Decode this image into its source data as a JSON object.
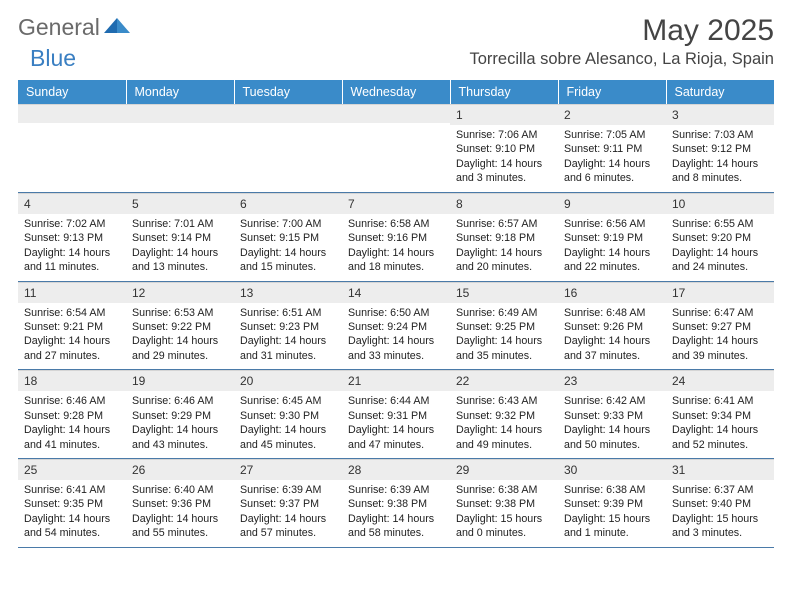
{
  "brand": {
    "general": "General",
    "blue": "Blue"
  },
  "title": "May 2025",
  "location": "Torrecilla sobre Alesanco, La Rioja, Spain",
  "colors": {
    "header_bg": "#3a8bc9",
    "header_text": "#ffffff",
    "daynum_bg": "#ededed",
    "border": "#4a7aa8",
    "brand_gray": "#6a6a6a",
    "brand_blue": "#3a7fc2"
  },
  "weekdays": [
    "Sunday",
    "Monday",
    "Tuesday",
    "Wednesday",
    "Thursday",
    "Friday",
    "Saturday"
  ],
  "weeks": [
    [
      null,
      null,
      null,
      null,
      {
        "d": "1",
        "sr": "7:06 AM",
        "ss": "9:10 PM",
        "dl": "14 hours and 3 minutes."
      },
      {
        "d": "2",
        "sr": "7:05 AM",
        "ss": "9:11 PM",
        "dl": "14 hours and 6 minutes."
      },
      {
        "d": "3",
        "sr": "7:03 AM",
        "ss": "9:12 PM",
        "dl": "14 hours and 8 minutes."
      }
    ],
    [
      {
        "d": "4",
        "sr": "7:02 AM",
        "ss": "9:13 PM",
        "dl": "14 hours and 11 minutes."
      },
      {
        "d": "5",
        "sr": "7:01 AM",
        "ss": "9:14 PM",
        "dl": "14 hours and 13 minutes."
      },
      {
        "d": "6",
        "sr": "7:00 AM",
        "ss": "9:15 PM",
        "dl": "14 hours and 15 minutes."
      },
      {
        "d": "7",
        "sr": "6:58 AM",
        "ss": "9:16 PM",
        "dl": "14 hours and 18 minutes."
      },
      {
        "d": "8",
        "sr": "6:57 AM",
        "ss": "9:18 PM",
        "dl": "14 hours and 20 minutes."
      },
      {
        "d": "9",
        "sr": "6:56 AM",
        "ss": "9:19 PM",
        "dl": "14 hours and 22 minutes."
      },
      {
        "d": "10",
        "sr": "6:55 AM",
        "ss": "9:20 PM",
        "dl": "14 hours and 24 minutes."
      }
    ],
    [
      {
        "d": "11",
        "sr": "6:54 AM",
        "ss": "9:21 PM",
        "dl": "14 hours and 27 minutes."
      },
      {
        "d": "12",
        "sr": "6:53 AM",
        "ss": "9:22 PM",
        "dl": "14 hours and 29 minutes."
      },
      {
        "d": "13",
        "sr": "6:51 AM",
        "ss": "9:23 PM",
        "dl": "14 hours and 31 minutes."
      },
      {
        "d": "14",
        "sr": "6:50 AM",
        "ss": "9:24 PM",
        "dl": "14 hours and 33 minutes."
      },
      {
        "d": "15",
        "sr": "6:49 AM",
        "ss": "9:25 PM",
        "dl": "14 hours and 35 minutes."
      },
      {
        "d": "16",
        "sr": "6:48 AM",
        "ss": "9:26 PM",
        "dl": "14 hours and 37 minutes."
      },
      {
        "d": "17",
        "sr": "6:47 AM",
        "ss": "9:27 PM",
        "dl": "14 hours and 39 minutes."
      }
    ],
    [
      {
        "d": "18",
        "sr": "6:46 AM",
        "ss": "9:28 PM",
        "dl": "14 hours and 41 minutes."
      },
      {
        "d": "19",
        "sr": "6:46 AM",
        "ss": "9:29 PM",
        "dl": "14 hours and 43 minutes."
      },
      {
        "d": "20",
        "sr": "6:45 AM",
        "ss": "9:30 PM",
        "dl": "14 hours and 45 minutes."
      },
      {
        "d": "21",
        "sr": "6:44 AM",
        "ss": "9:31 PM",
        "dl": "14 hours and 47 minutes."
      },
      {
        "d": "22",
        "sr": "6:43 AM",
        "ss": "9:32 PM",
        "dl": "14 hours and 49 minutes."
      },
      {
        "d": "23",
        "sr": "6:42 AM",
        "ss": "9:33 PM",
        "dl": "14 hours and 50 minutes."
      },
      {
        "d": "24",
        "sr": "6:41 AM",
        "ss": "9:34 PM",
        "dl": "14 hours and 52 minutes."
      }
    ],
    [
      {
        "d": "25",
        "sr": "6:41 AM",
        "ss": "9:35 PM",
        "dl": "14 hours and 54 minutes."
      },
      {
        "d": "26",
        "sr": "6:40 AM",
        "ss": "9:36 PM",
        "dl": "14 hours and 55 minutes."
      },
      {
        "d": "27",
        "sr": "6:39 AM",
        "ss": "9:37 PM",
        "dl": "14 hours and 57 minutes."
      },
      {
        "d": "28",
        "sr": "6:39 AM",
        "ss": "9:38 PM",
        "dl": "14 hours and 58 minutes."
      },
      {
        "d": "29",
        "sr": "6:38 AM",
        "ss": "9:38 PM",
        "dl": "15 hours and 0 minutes."
      },
      {
        "d": "30",
        "sr": "6:38 AM",
        "ss": "9:39 PM",
        "dl": "15 hours and 1 minute."
      },
      {
        "d": "31",
        "sr": "6:37 AM",
        "ss": "9:40 PM",
        "dl": "15 hours and 3 minutes."
      }
    ]
  ],
  "labels": {
    "sunrise": "Sunrise: ",
    "sunset": "Sunset: ",
    "daylight": "Daylight: "
  }
}
